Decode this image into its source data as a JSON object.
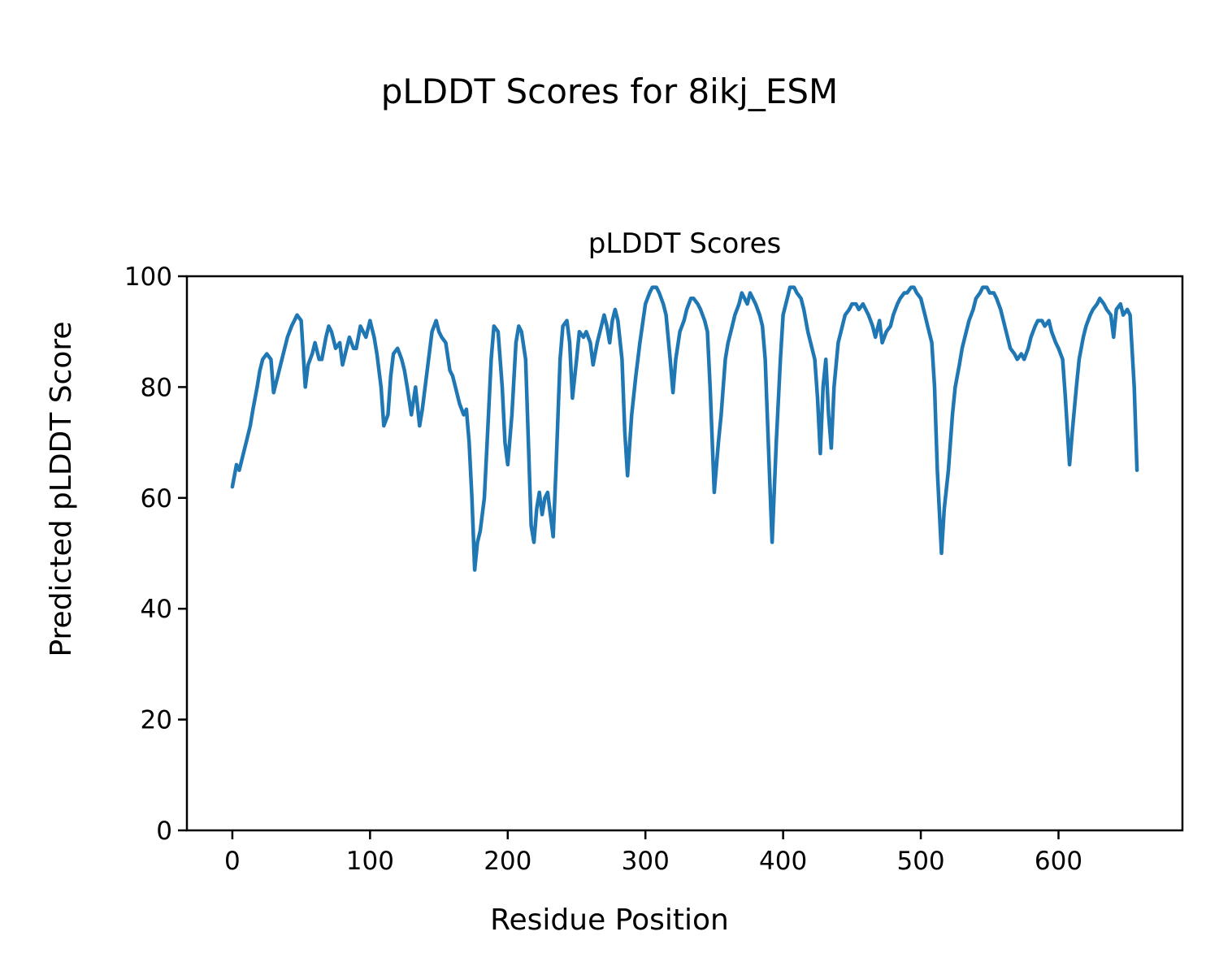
{
  "chart_data": {
    "type": "line",
    "figure_title": "pLDDT Scores for 8ikj_ESM",
    "title": "pLDDT Scores",
    "xlabel": "Residue Position",
    "ylabel": "Predicted pLDDT Score",
    "x_ticks": [
      0,
      100,
      200,
      300,
      400,
      500,
      600
    ],
    "y_ticks": [
      0,
      20,
      40,
      60,
      80,
      100
    ],
    "xlim": [
      -33,
      690
    ],
    "ylim": [
      0,
      100
    ],
    "grid": false,
    "legend": "none",
    "line_color": "#1f77b4",
    "series": [
      {
        "name": "pLDDT",
        "x": [
          0,
          3,
          5,
          8,
          10,
          13,
          15,
          18,
          20,
          22,
          25,
          28,
          30,
          33,
          35,
          38,
          40,
          43,
          45,
          47,
          50,
          53,
          55,
          58,
          60,
          63,
          65,
          68,
          70,
          72,
          75,
          78,
          80,
          83,
          85,
          88,
          90,
          93,
          95,
          97,
          100,
          103,
          105,
          108,
          110,
          113,
          115,
          117,
          120,
          123,
          125,
          127,
          130,
          133,
          136,
          138,
          140,
          143,
          145,
          148,
          150,
          152,
          155,
          158,
          160,
          163,
          165,
          168,
          170,
          172,
          174,
          176,
          178,
          180,
          183,
          186,
          188,
          190,
          193,
          196,
          198,
          200,
          203,
          206,
          208,
          210,
          213,
          215,
          217,
          219,
          221,
          223,
          225,
          227,
          229,
          231,
          233,
          235,
          238,
          240,
          243,
          245,
          247,
          250,
          252,
          255,
          257,
          260,
          262,
          265,
          267,
          270,
          272,
          274,
          276,
          278,
          280,
          283,
          285,
          287,
          290,
          293,
          296,
          300,
          303,
          305,
          308,
          310,
          313,
          315,
          318,
          320,
          322,
          325,
          328,
          330,
          333,
          335,
          338,
          340,
          343,
          345,
          347,
          350,
          353,
          355,
          358,
          360,
          363,
          365,
          368,
          370,
          372,
          374,
          376,
          378,
          380,
          383,
          385,
          387,
          390,
          392,
          395,
          398,
          400,
          403,
          405,
          408,
          410,
          413,
          415,
          418,
          420,
          423,
          425,
          427,
          429,
          431,
          433,
          435,
          437,
          440,
          443,
          445,
          448,
          450,
          453,
          455,
          458,
          460,
          462,
          465,
          467,
          470,
          472,
          475,
          478,
          480,
          483,
          485,
          488,
          490,
          493,
          495,
          497,
          500,
          503,
          505,
          508,
          510,
          512,
          515,
          517,
          520,
          523,
          525,
          528,
          530,
          533,
          535,
          538,
          540,
          543,
          545,
          548,
          550,
          553,
          555,
          558,
          560,
          563,
          565,
          568,
          570,
          573,
          575,
          578,
          580,
          583,
          585,
          588,
          590,
          593,
          595,
          598,
          600,
          603,
          605,
          608,
          610,
          613,
          615,
          618,
          620,
          623,
          625,
          628,
          630,
          633,
          635,
          638,
          640,
          642,
          645,
          647,
          650,
          652,
          655,
          657
        ],
        "y": [
          62,
          66,
          65,
          68,
          70,
          73,
          76,
          80,
          83,
          85,
          86,
          85,
          79,
          82,
          84,
          87,
          89,
          91,
          92,
          93,
          92,
          80,
          84,
          86,
          88,
          85,
          85,
          89,
          91,
          90,
          87,
          88,
          84,
          87,
          89,
          87,
          87,
          91,
          90,
          89,
          92,
          89,
          86,
          80,
          73,
          75,
          82,
          86,
          87,
          85,
          83,
          80,
          75,
          80,
          73,
          76,
          80,
          86,
          90,
          92,
          90,
          89,
          88,
          83,
          82,
          79,
          77,
          75,
          76,
          70,
          60,
          47,
          52,
          54,
          60,
          75,
          85,
          91,
          90,
          80,
          70,
          66,
          75,
          88,
          91,
          90,
          85,
          70,
          55,
          52,
          58,
          61,
          57,
          60,
          61,
          57,
          53,
          65,
          85,
          91,
          92,
          88,
          78,
          85,
          90,
          89,
          90,
          88,
          84,
          88,
          90,
          93,
          91,
          88,
          92,
          94,
          92,
          85,
          72,
          64,
          75,
          82,
          88,
          95,
          97,
          98,
          98,
          97,
          95,
          93,
          85,
          79,
          85,
          90,
          92,
          94,
          96,
          96,
          95,
          94,
          92,
          90,
          80,
          61,
          70,
          75,
          85,
          88,
          91,
          93,
          95,
          97,
          96,
          95,
          97,
          96,
          95,
          93,
          91,
          85,
          65,
          52,
          70,
          85,
          93,
          96,
          98,
          98,
          97,
          96,
          94,
          90,
          88,
          85,
          78,
          68,
          80,
          85,
          75,
          69,
          80,
          88,
          91,
          93,
          94,
          95,
          95,
          94,
          95,
          94,
          93,
          91,
          89,
          92,
          88,
          90,
          91,
          93,
          95,
          96,
          97,
          97,
          98,
          98,
          97,
          96,
          93,
          91,
          88,
          80,
          65,
          50,
          58,
          65,
          75,
          80,
          84,
          87,
          90,
          92,
          94,
          96,
          97,
          98,
          98,
          97,
          97,
          96,
          94,
          92,
          89,
          87,
          86,
          85,
          86,
          85,
          87,
          89,
          91,
          92,
          92,
          91,
          92,
          90,
          88,
          87,
          85,
          78,
          66,
          72,
          80,
          85,
          89,
          91,
          93,
          94,
          95,
          96,
          95,
          94,
          93,
          89,
          94,
          95,
          93,
          94,
          93,
          80,
          65
        ]
      }
    ]
  }
}
